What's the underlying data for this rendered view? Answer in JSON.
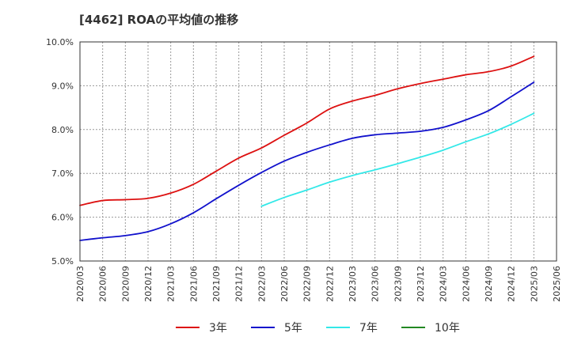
{
  "chart_data": {
    "type": "line",
    "title": "[4462]  ROAの平均値の推移",
    "xlabel": "",
    "ylabel": "",
    "ylim": [
      5.0,
      10.0
    ],
    "yticks": [
      5.0,
      6.0,
      7.0,
      8.0,
      9.0,
      10.0
    ],
    "ytick_labels": [
      "5.0%",
      "6.0%",
      "7.0%",
      "8.0%",
      "9.0%",
      "10.0%"
    ],
    "x": [
      "2020/03",
      "2020/06",
      "2020/09",
      "2020/12",
      "2021/03",
      "2021/06",
      "2021/09",
      "2021/12",
      "2022/03",
      "2022/06",
      "2022/09",
      "2022/12",
      "2023/03",
      "2023/06",
      "2023/09",
      "2023/12",
      "2024/03",
      "2024/06",
      "2024/09",
      "2024/12",
      "2025/03",
      "2025/06"
    ],
    "grid": true,
    "legend_position": "bottom",
    "series": [
      {
        "name": "3年",
        "color": "#dd1111",
        "values": [
          6.27,
          6.38,
          6.4,
          6.43,
          6.55,
          6.75,
          7.05,
          7.35,
          7.58,
          7.87,
          8.15,
          8.47,
          8.65,
          8.78,
          8.93,
          9.05,
          9.15,
          9.25,
          9.32,
          9.45,
          9.67,
          null
        ]
      },
      {
        "name": "5年",
        "color": "#1111cc",
        "values": [
          5.47,
          5.53,
          5.58,
          5.67,
          5.85,
          6.1,
          6.42,
          6.73,
          7.02,
          7.28,
          7.48,
          7.65,
          7.8,
          7.88,
          7.92,
          7.96,
          8.05,
          8.22,
          8.43,
          8.75,
          9.08,
          null
        ]
      },
      {
        "name": "7年",
        "color": "#33e8e8",
        "values": [
          null,
          null,
          null,
          null,
          null,
          null,
          null,
          null,
          6.25,
          6.45,
          6.62,
          6.8,
          6.95,
          7.08,
          7.22,
          7.37,
          7.53,
          7.72,
          7.9,
          8.12,
          8.37,
          null
        ]
      },
      {
        "name": "10年",
        "color": "#228822",
        "values": [
          null,
          null,
          null,
          null,
          null,
          null,
          null,
          null,
          null,
          null,
          null,
          null,
          null,
          null,
          null,
          null,
          null,
          null,
          null,
          null,
          null,
          null
        ]
      }
    ]
  }
}
